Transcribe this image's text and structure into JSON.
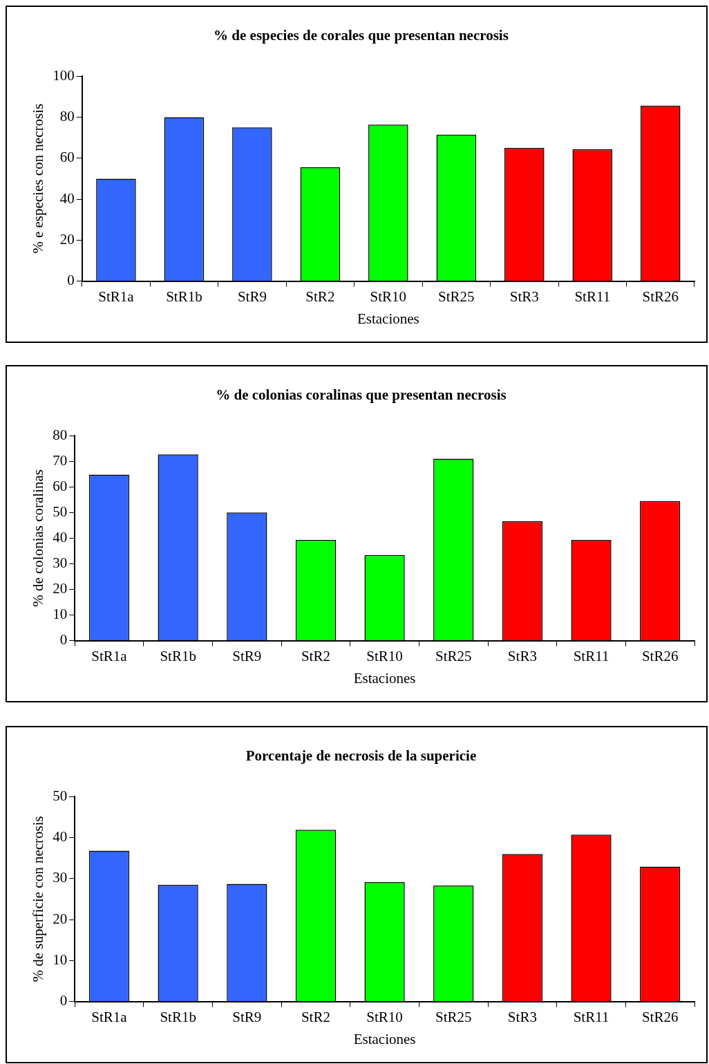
{
  "chart_data": [
    {
      "type": "bar",
      "title": "% de especies de corales que presentan necrosis",
      "xlabel": "Estaciones",
      "ylabel": "% e especies con necrosis",
      "categories": [
        "StR1a",
        "StR1b",
        "StR9",
        "StR2",
        "StR10",
        "StR25",
        "StR3",
        "StR11",
        "StR26"
      ],
      "values": [
        50,
        80,
        75,
        55.5,
        76.4,
        71.5,
        65,
        64.3,
        85.6
      ],
      "colors": [
        "#3366ff",
        "#3366ff",
        "#3366ff",
        "#00ff00",
        "#00ff00",
        "#00ff00",
        "#ff0000",
        "#ff0000",
        "#ff0000"
      ],
      "ylim": [
        0,
        100
      ],
      "yticks": [
        0,
        20,
        40,
        60,
        80,
        100
      ],
      "grid": false,
      "legend": false
    },
    {
      "type": "bar",
      "title": "% de colonias coralinas que presentan necrosis",
      "xlabel": "Estaciones",
      "ylabel": "% de colonias coralinas",
      "categories": [
        "StR1a",
        "StR1b",
        "StR9",
        "StR2",
        "StR10",
        "StR25",
        "StR3",
        "StR11",
        "StR26"
      ],
      "values": [
        64.8,
        72.7,
        50,
        39.3,
        33.4,
        71,
        46.6,
        39.3,
        54.5
      ],
      "colors": [
        "#3366ff",
        "#3366ff",
        "#3366ff",
        "#00ff00",
        "#00ff00",
        "#00ff00",
        "#ff0000",
        "#ff0000",
        "#ff0000"
      ],
      "ylim": [
        0,
        80
      ],
      "yticks": [
        0,
        10,
        20,
        30,
        40,
        50,
        60,
        70,
        80
      ],
      "grid": false,
      "legend": false
    },
    {
      "type": "bar",
      "title": "Porcentaje de necrosis de la supericie",
      "xlabel": "Estaciones",
      "ylabel": "% de superficie con necrosis",
      "categories": [
        "StR1a",
        "StR1b",
        "StR9",
        "StR2",
        "StR10",
        "StR25",
        "StR3",
        "StR11",
        "StR26"
      ],
      "values": [
        36.8,
        28.5,
        28.7,
        41.9,
        29.1,
        28.3,
        36,
        40.7,
        32.9
      ],
      "colors": [
        "#3366ff",
        "#3366ff",
        "#3366ff",
        "#00ff00",
        "#00ff00",
        "#00ff00",
        "#ff0000",
        "#ff0000",
        "#ff0000"
      ],
      "ylim": [
        0,
        50
      ],
      "yticks": [
        0,
        10,
        20,
        30,
        40,
        50
      ],
      "grid": false,
      "legend": false
    }
  ]
}
